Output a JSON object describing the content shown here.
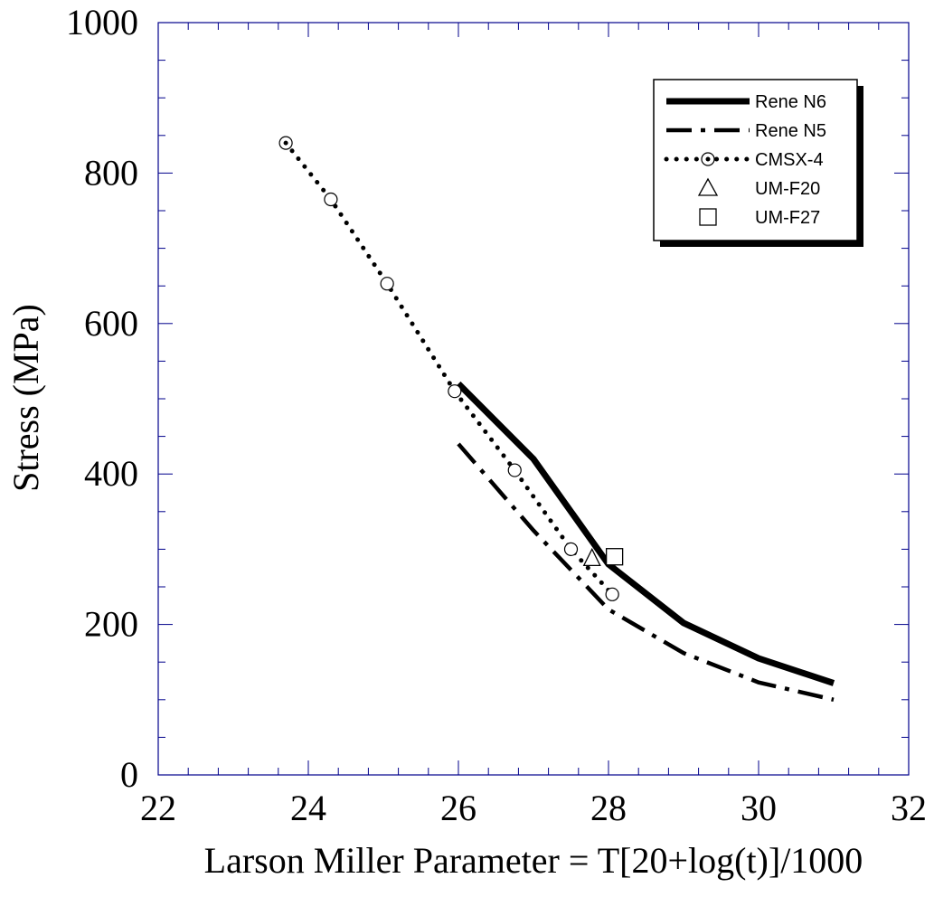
{
  "chart_data": {
    "type": "line",
    "title": "",
    "xlabel": "Larson Miller Parameter = T[20+log(t)]/1000",
    "ylabel": "Stress (MPa)",
    "xlim": [
      22,
      32
    ],
    "ylim": [
      0,
      1000
    ],
    "x_ticks": [
      22,
      24,
      26,
      28,
      30,
      32
    ],
    "y_ticks": [
      0,
      200,
      400,
      600,
      800,
      1000
    ],
    "x_tick_labels": [
      "22",
      "24",
      "26",
      "28",
      "30",
      "32"
    ],
    "y_tick_labels": [
      "0",
      "200",
      "400",
      "600",
      "800",
      "1000"
    ],
    "x_minor_step": 0.4,
    "y_minor_step": 50,
    "grid": false,
    "legend_position": "top-right",
    "axis_color": "#00008b",
    "series": [
      {
        "name": "Rene N6",
        "style": "solid-thick",
        "x": [
          26.0,
          27.0,
          28.0,
          29.0,
          30.0,
          31.0
        ],
        "y": [
          520,
          420,
          280,
          202,
          155,
          122
        ]
      },
      {
        "name": "Rene N5",
        "style": "dash-dot",
        "x": [
          26.0,
          27.0,
          28.0,
          29.0,
          30.0,
          31.0
        ],
        "y": [
          440,
          325,
          220,
          162,
          123,
          100
        ]
      },
      {
        "name": "CMSX-4",
        "style": "dotted-circles",
        "x": [
          23.7,
          24.3,
          25.05,
          25.95,
          26.75,
          27.5,
          28.05
        ],
        "y": [
          840,
          765,
          653,
          510,
          405,
          300,
          240
        ]
      },
      {
        "name": "UM-F20",
        "style": "triangle-marker",
        "x": [
          27.78
        ],
        "y": [
          288
        ]
      },
      {
        "name": "UM-F27",
        "style": "square-marker",
        "x": [
          28.08
        ],
        "y": [
          290
        ]
      }
    ]
  }
}
